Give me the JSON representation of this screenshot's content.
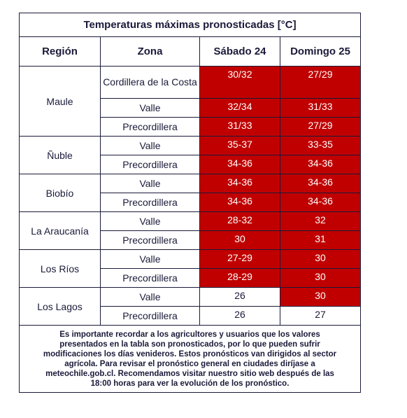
{
  "title": "Temperaturas máximas pronosticadas [°C]",
  "headers": [
    "Región",
    "Zona",
    "Sábado 24",
    "Domingo 25"
  ],
  "regions": [
    {
      "name": "Maule",
      "zones": [
        {
          "zone": "Cordillera de la Costa",
          "values": [
            "30/32",
            "27/29"
          ],
          "colors": [
            "#c00000",
            "#c00000"
          ]
        },
        {
          "zone": "Valle",
          "values": [
            "32/34",
            "31/33"
          ],
          "colors": [
            "#c00000",
            "#c00000"
          ]
        },
        {
          "zone": "Precordillera",
          "values": [
            "31/33",
            "27/29"
          ],
          "colors": [
            "#c00000",
            "#c00000"
          ]
        }
      ]
    },
    {
      "name": "Ñuble",
      "zones": [
        {
          "zone": "Valle",
          "values": [
            "35-37",
            "33-35"
          ],
          "colors": [
            "#c00000",
            "#c00000"
          ]
        },
        {
          "zone": "Precordillera",
          "values": [
            "34-36",
            "34-36"
          ],
          "colors": [
            "#c00000",
            "#c00000"
          ]
        }
      ]
    },
    {
      "name": "Biobío",
      "zones": [
        {
          "zone": "Valle",
          "values": [
            "34-36",
            "34-36"
          ],
          "colors": [
            "#c00000",
            "#c00000"
          ]
        },
        {
          "zone": "Precordillera",
          "values": [
            "34-36",
            "34-36"
          ],
          "colors": [
            "#c00000",
            "#c00000"
          ]
        }
      ]
    },
    {
      "name": "La Araucanía",
      "zones": [
        {
          "zone": "Valle",
          "values": [
            "28-32",
            "32"
          ],
          "colors": [
            "#c00000",
            "#c00000"
          ]
        },
        {
          "zone": "Precordillera",
          "values": [
            "30",
            "31"
          ],
          "colors": [
            "#c00000",
            "#c00000"
          ]
        }
      ]
    },
    {
      "name": "Los Ríos",
      "zones": [
        {
          "zone": "Valle",
          "values": [
            "27-29",
            "30"
          ],
          "colors": [
            "#c00000",
            "#c00000"
          ]
        },
        {
          "zone": "Precordillera",
          "values": [
            "28-29",
            "30"
          ],
          "colors": [
            "#c00000",
            "#c00000"
          ]
        }
      ]
    },
    {
      "name": "Los Lagos",
      "zones": [
        {
          "zone": "Valle",
          "values": [
            "26",
            "30"
          ],
          "colors": [
            "#ffffff",
            "#c00000"
          ]
        },
        {
          "zone": "Precordillera",
          "values": [
            "26",
            "27"
          ],
          "colors": [
            "#ffffff",
            "#ffffff"
          ]
        }
      ]
    }
  ],
  "footer": [
    "Es importante recordar a los agricultores y usuarios que los valores",
    "presentados en la tabla son pronosticados, por lo que pueden sufrir",
    "modificaciones los días venideros. Estos pronósticos van dirigidos al sector",
    "agrícola. Para revisar el pronóstico general en ciudades diríjase a",
    "meteochile.gob.cl. Recomendamos visitar nuestro sitio web después de las",
    "18:00 horas para ver la evolución de los pronóstico."
  ]
}
